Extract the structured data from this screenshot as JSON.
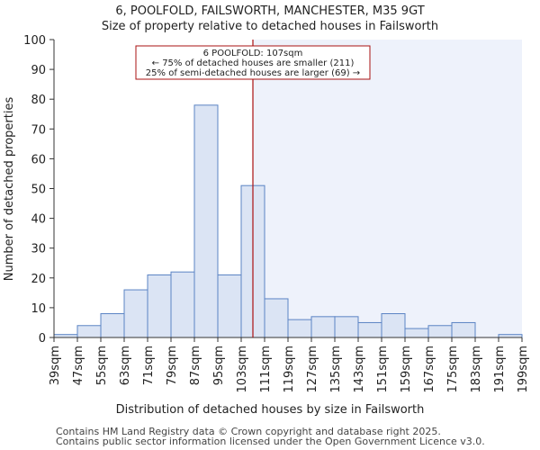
{
  "chart_data": {
    "type": "bar",
    "title": "6, POOLFOLD, FAILSWORTH, MANCHESTER, M35 9GT",
    "subtitle": "Size of property relative to detached houses in Failsworth",
    "xlabel": "Distribution of detached houses by size in Failsworth",
    "ylabel": "Number of detached properties",
    "ylim": [
      0,
      100
    ],
    "yticks": [
      0,
      10,
      20,
      30,
      40,
      50,
      60,
      70,
      80,
      90,
      100
    ],
    "bin_edges": [
      39,
      47,
      55,
      63,
      71,
      79,
      87,
      95,
      103,
      111,
      119,
      127,
      135,
      143,
      151,
      159,
      167,
      175,
      183,
      191,
      199
    ],
    "x_tick_labels": [
      "39sqm",
      "47sqm",
      "55sqm",
      "63sqm",
      "71sqm",
      "79sqm",
      "87sqm",
      "95sqm",
      "103sqm",
      "111sqm",
      "119sqm",
      "127sqm",
      "135sqm",
      "143sqm",
      "151sqm",
      "159sqm",
      "167sqm",
      "175sqm",
      "183sqm",
      "191sqm",
      "199sqm"
    ],
    "values": [
      1,
      4,
      8,
      16,
      21,
      22,
      78,
      21,
      51,
      13,
      6,
      7,
      7,
      5,
      8,
      3,
      4,
      5,
      0,
      1
    ],
    "marker_value": 107,
    "annotation": {
      "line1": "6 POOLFOLD: 107sqm",
      "line2": "← 75% of detached houses are smaller (211)",
      "line3": "25% of semi-detached houses are larger (69) →"
    },
    "colors": {
      "bar_fill": "#dbe4f4",
      "bar_stroke": "#5b84c4",
      "marker_line": "#aa1111",
      "highlight_region": "#eef2fb",
      "annotation_border": "#aa1111"
    }
  },
  "footer": {
    "line1": "Contains HM Land Registry data © Crown copyright and database right 2025.",
    "line2": "Contains public sector information licensed under the Open Government Licence v3.0."
  }
}
